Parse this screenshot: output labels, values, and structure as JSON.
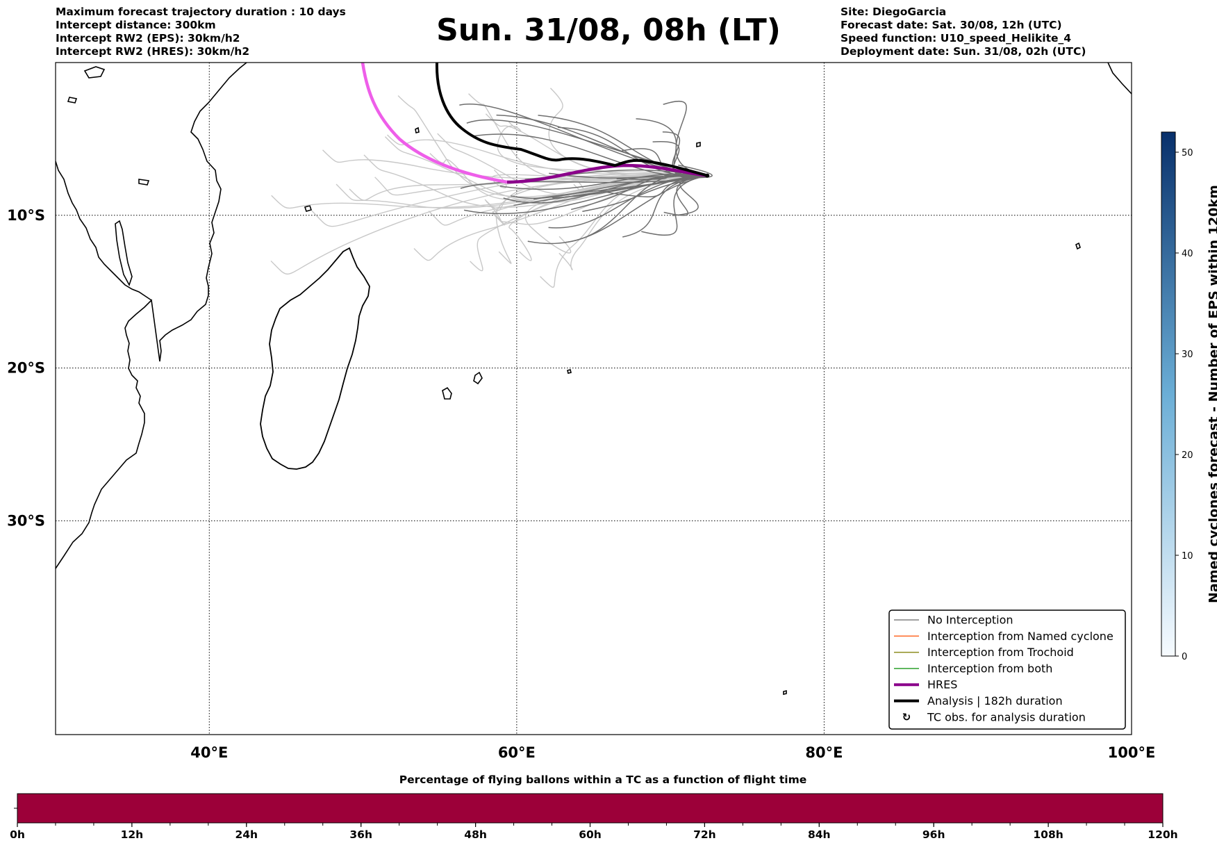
{
  "header": {
    "title": "Sun. 31/08, 08h (LT)",
    "left_lines": [
      "Maximum forecast trajectory duration : 10 days",
      "Intercept distance: 300km",
      "Intercept RW2 (EPS):  30km/h2",
      "Intercept RW2 (HRES): 30km/h2"
    ],
    "right_lines": [
      "Site: DiegoGarcia",
      "Forecast date: Sat. 30/08, 12h (UTC)",
      "Speed function: U10_speed_Helikite_4",
      "Deployment date: Sun. 31/08, 02h (UTC)"
    ]
  },
  "map": {
    "lon_range": [
      30,
      100
    ],
    "lat_range": [
      -44,
      0
    ],
    "lon_ticks": [
      40,
      60,
      80,
      100
    ],
    "lon_tick_labels": [
      "40°E",
      "60°E",
      "80°E",
      "100°E"
    ],
    "lat_ticks": [
      -10,
      -20,
      -30
    ],
    "lat_tick_labels": [
      "10°S",
      "20°S",
      "30°S"
    ],
    "gridlines": true,
    "deployment_site": {
      "lon": 72.4,
      "lat": -7.4
    }
  },
  "legend": {
    "placement": "lower-right",
    "entries": [
      {
        "label": "No Interception",
        "color": "#808080",
        "style": "thin-line"
      },
      {
        "label": "Interception from Named cyclone",
        "color": "#ff6a2a",
        "style": "thin-line"
      },
      {
        "label": "Interception from Trochoid",
        "color": "#8c8c1e",
        "style": "thin-line"
      },
      {
        "label": "Interception from both",
        "color": "#2ca02c",
        "style": "thin-line"
      },
      {
        "label": "HRES",
        "color": "#8b008b",
        "style": "thick-line"
      },
      {
        "label": "Analysis | 182h duration",
        "color": "#000000",
        "style": "thick-line"
      },
      {
        "label": "TC obs. for analysis duration",
        "color": "#000000",
        "style": "marker"
      }
    ]
  },
  "colorbar_right": {
    "label": "Named cyclones forecast - Number of EPS within 120km",
    "range": [
      0,
      52
    ],
    "ticks": [
      "0",
      "10",
      "20",
      "30",
      "40",
      "50"
    ],
    "colors": [
      "#f7fbff",
      "#08306b"
    ]
  },
  "colorbar_bottom": {
    "title": "Percentage of flying ballons within a TC as a function of flight time",
    "ticks": [
      "0h",
      "12h",
      "24h",
      "36h",
      "48h",
      "60h",
      "72h",
      "84h",
      "96h",
      "108h",
      "120h"
    ],
    "fill_color": "#9c0039"
  }
}
